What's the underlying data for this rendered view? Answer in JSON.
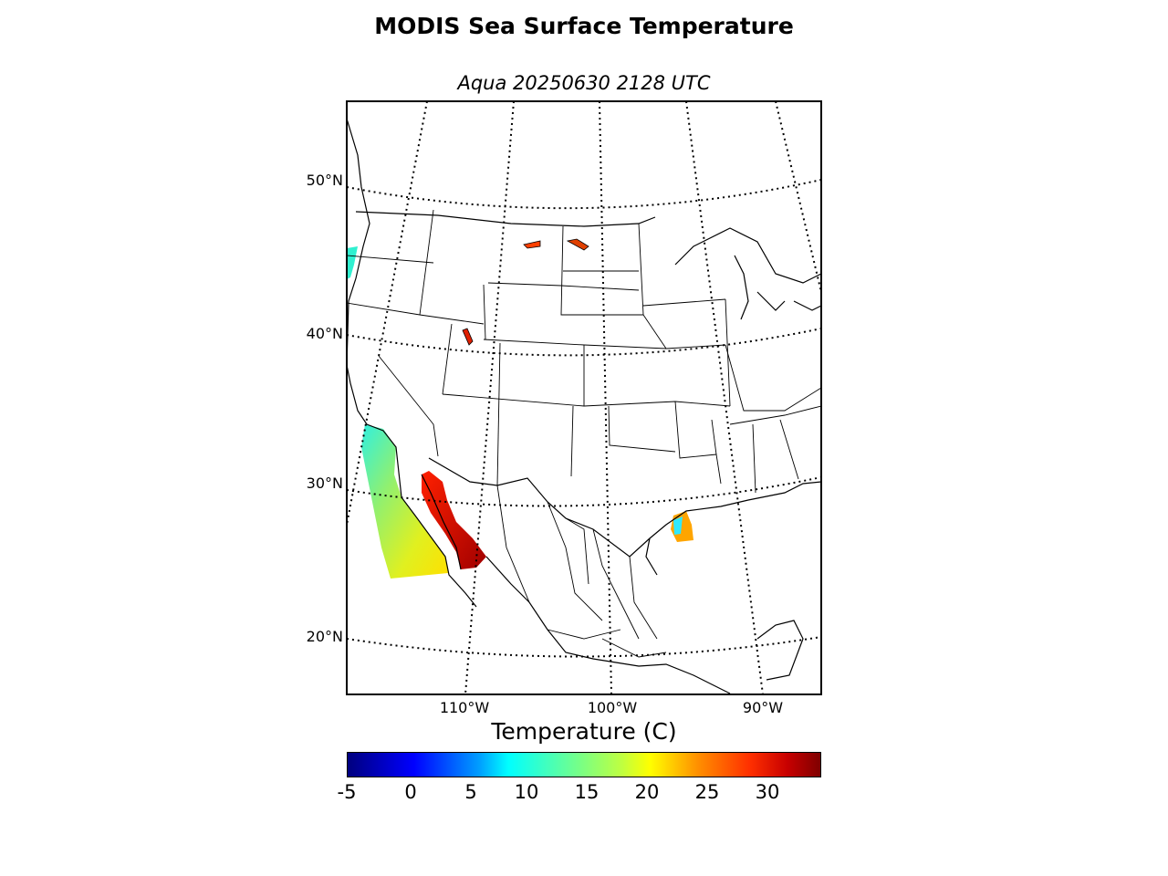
{
  "title": "MODIS Sea Surface Temperature",
  "subtitle": "Aqua 20250630 2128 UTC",
  "map": {
    "projection": "lambert-conformal",
    "region": "Continental United States and Mexico",
    "lat_labels": [
      "50°N",
      "40°N",
      "30°N",
      "20°N"
    ],
    "lon_labels": [
      "110°W",
      "100°W",
      "90°W"
    ],
    "gridlines": "dotted",
    "features": [
      "coastlines",
      "country borders",
      "state borders",
      "lakes"
    ]
  },
  "colorbar": {
    "label": "Temperature (C)",
    "ticks": [
      "-5",
      "0",
      "5",
      "10",
      "15",
      "20",
      "25",
      "30"
    ],
    "range": [
      -5,
      34
    ],
    "colormap": "jet"
  },
  "colors": {
    "pacific_coast": "#b8f040",
    "gulf_of_california": "#d81400",
    "gulf_of_mexico": "#ffaa00",
    "oregon_coast": "#30f0d0"
  }
}
